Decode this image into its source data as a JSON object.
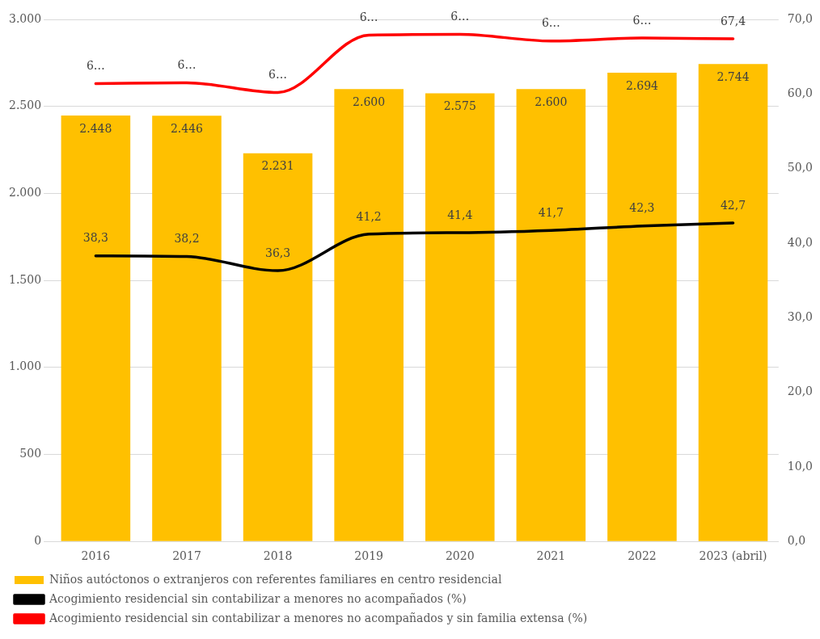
{
  "chart_data": {
    "type": "bar",
    "categories": [
      "2016",
      "2017",
      "2018",
      "2019",
      "2020",
      "2021",
      "2022",
      "2023 (abril)"
    ],
    "series": [
      {
        "name": "Niños autóctonos o extranjeros con referentes familiares en centro residencial",
        "color": "#ffc000",
        "values": [
          2448,
          2446,
          2231,
          2600,
          2575,
          2600,
          2694,
          2744
        ],
        "value_labels": [
          "2.448",
          "2.446",
          "2.231",
          "2.600",
          "2.575",
          "2.600",
          "2.694",
          "2.744"
        ]
      },
      {
        "name": "Acogimiento residencial sin contabilizar a menores no acompañados (%)",
        "type": "line",
        "axis": "y2",
        "color": "#000000",
        "values": [
          38.3,
          38.2,
          36.3,
          41.2,
          41.4,
          41.7,
          42.3,
          42.7
        ],
        "value_labels": [
          "38,3",
          "38,2",
          "36,3",
          "41,2",
          "41,4",
          "41,7",
          "42,3",
          "42,7"
        ]
      },
      {
        "name": "Acogimiento residencial sin contabilizar a menores no acompañados y sin familia extensa (%)",
        "type": "line",
        "axis": "y2",
        "color": "#ff0000",
        "values": [
          61.4,
          61.5,
          60.2,
          67.9,
          68.0,
          67.1,
          67.5,
          67.4
        ],
        "value_labels": [
          "6…",
          "6…",
          "6…",
          "6…",
          "6…",
          "6…",
          "6…",
          "67,4"
        ]
      }
    ],
    "ylim": [
      0,
      3000
    ],
    "yticks": [
      {
        "value": 0,
        "label": "0"
      },
      {
        "value": 500,
        "label": "500"
      },
      {
        "value": 1000,
        "label": "1.000"
      },
      {
        "value": 1500,
        "label": "1.500"
      },
      {
        "value": 2000,
        "label": "2.000"
      },
      {
        "value": 2500,
        "label": "2.500"
      },
      {
        "value": 3000,
        "label": "3.000"
      }
    ],
    "y2lim": [
      0,
      70
    ],
    "y2ticks": [
      {
        "value": 0,
        "label": "0,0"
      },
      {
        "value": 10,
        "label": "10,0"
      },
      {
        "value": 20,
        "label": "20,0"
      },
      {
        "value": 30,
        "label": "30,0"
      },
      {
        "value": 40,
        "label": "40,0"
      },
      {
        "value": 50,
        "label": "50,0"
      },
      {
        "value": 60,
        "label": "60,0"
      },
      {
        "value": 70,
        "label": "70,0"
      }
    ],
    "grid": "y",
    "legend": "bottom",
    "marker": "none",
    "line_style": "solid"
  }
}
